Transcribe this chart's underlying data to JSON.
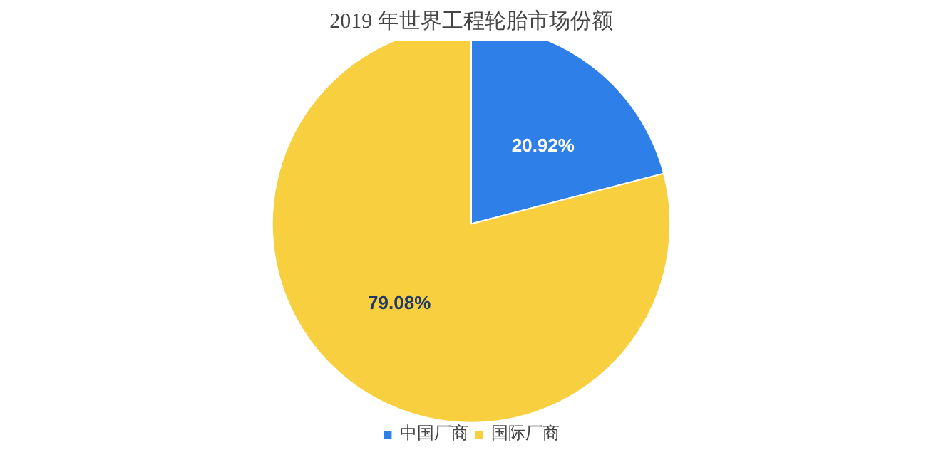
{
  "chart_data": {
    "type": "pie",
    "title": "2019 年世界工程轮胎市场份额",
    "categories": [
      "中国厂商",
      "国际厂商"
    ],
    "values": [
      20.92,
      79.08
    ],
    "colors": [
      "#2f7fe8",
      "#f7cf3f"
    ],
    "value_labels": [
      "20.92%",
      "79.08%"
    ],
    "legend": "bottom"
  }
}
